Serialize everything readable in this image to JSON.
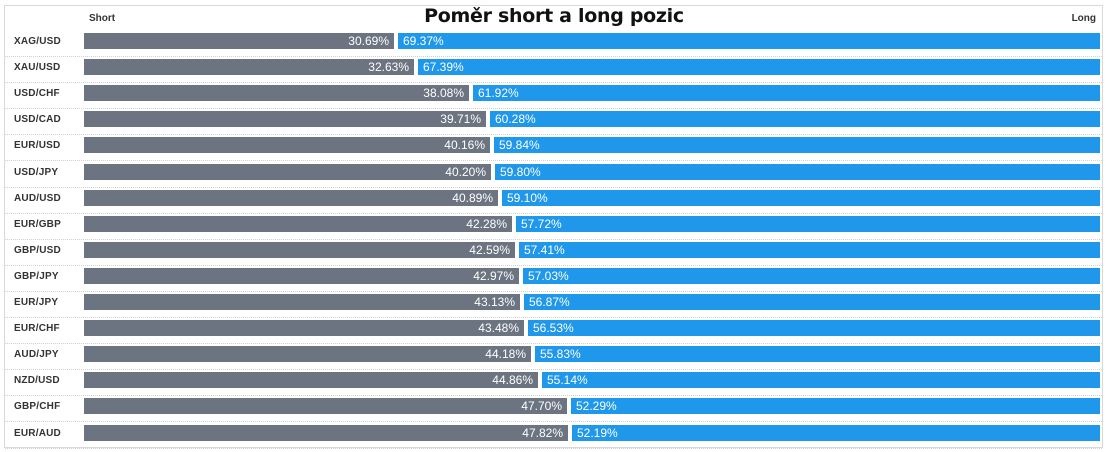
{
  "chart_data": {
    "type": "bar",
    "title": "Poměr short a long pozic",
    "left_header": "Short",
    "right_header": "Long",
    "categories": [
      "XAG/USD",
      "XAU/USD",
      "USD/CHF",
      "USD/CAD",
      "EUR/USD",
      "USD/JPY",
      "AUD/USD",
      "EUR/GBP",
      "GBP/USD",
      "GBP/JPY",
      "EUR/JPY",
      "EUR/CHF",
      "AUD/JPY",
      "NZD/USD",
      "GBP/CHF",
      "EUR/AUD"
    ],
    "series": [
      {
        "name": "Short",
        "color": "#6b7480",
        "values": [
          30.69,
          32.63,
          38.08,
          39.71,
          40.16,
          40.2,
          40.89,
          42.28,
          42.59,
          42.97,
          43.13,
          43.48,
          44.18,
          44.86,
          47.7,
          47.82
        ],
        "labels": [
          "30.69%",
          "32.63%",
          "38.08%",
          "39.71%",
          "40.16%",
          "40.20%",
          "40.89%",
          "42.28%",
          "42.59%",
          "42.97%",
          "43.13%",
          "43.48%",
          "44.18%",
          "44.86%",
          "47.70%",
          "47.82%"
        ]
      },
      {
        "name": "Long",
        "color": "#1f97ea",
        "values": [
          69.37,
          67.39,
          61.92,
          60.28,
          59.84,
          59.8,
          59.1,
          57.72,
          57.41,
          57.03,
          56.87,
          56.53,
          55.83,
          55.14,
          52.29,
          52.19
        ],
        "labels": [
          "69.37%",
          "67.39%",
          "61.92%",
          "60.28%",
          "59.84%",
          "59.80%",
          "59.10%",
          "57.72%",
          "57.41%",
          "57.03%",
          "56.87%",
          "56.53%",
          "55.83%",
          "55.14%",
          "52.29%",
          "52.19%"
        ]
      }
    ],
    "stacked": true,
    "orientation": "horizontal",
    "xlim": [
      0,
      100
    ],
    "grid": false,
    "legend": "top"
  }
}
